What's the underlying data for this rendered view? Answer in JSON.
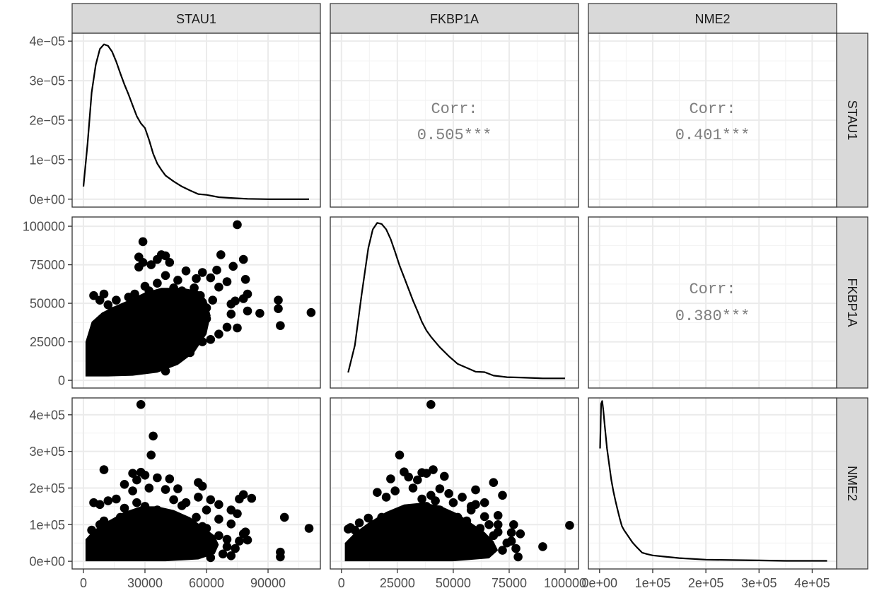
{
  "chart_data": {
    "type": "scatter",
    "title": "",
    "variables": [
      "STAU1",
      "FKBP1A",
      "NME2"
    ],
    "corr_label": "Corr:",
    "correlations": [
      {
        "row": "STAU1",
        "col": "FKBP1A",
        "value": "0.505***"
      },
      {
        "row": "STAU1",
        "col": "NME2",
        "value": "0.401***"
      },
      {
        "row": "FKBP1A",
        "col": "NME2",
        "value": "0.380***"
      }
    ],
    "density_y_axis": {
      "range": [
        -2e-06,
        4.2e-05
      ],
      "ticks": [
        0,
        1e-05,
        2e-05,
        3e-05,
        4e-05
      ],
      "labels": [
        "0e+00",
        "1e−05",
        "2e−05",
        "3e−05",
        "4e−05"
      ]
    },
    "axes": {
      "STAU1": {
        "range": [
          -5500,
          115500
        ],
        "ticks": [
          0,
          30000,
          60000,
          90000
        ],
        "labels": [
          "0",
          "30000",
          "60000",
          "90000"
        ]
      },
      "FKBP1A": {
        "range": [
          -5000,
          106000
        ],
        "ticks": [
          0,
          25000,
          50000,
          75000,
          100000
        ],
        "labels": [
          "0",
          "25000",
          "50000",
          "75000",
          "100000"
        ]
      },
      "NME2": {
        "range": [
          -21000,
          446000
        ],
        "ticks": [
          0,
          100000,
          200000,
          300000,
          400000
        ],
        "labels": [
          "0e+00",
          "1e+05",
          "2e+05",
          "3e+05",
          "4e+05"
        ]
      }
    },
    "densities": {
      "STAU1": [
        [
          0,
          3.2e-06
        ],
        [
          2000,
          1.4e-05
        ],
        [
          4000,
          2.7e-05
        ],
        [
          6000,
          3.4e-05
        ],
        [
          8000,
          3.8e-05
        ],
        [
          10000,
          3.92e-05
        ],
        [
          12000,
          3.88e-05
        ],
        [
          14000,
          3.73e-05
        ],
        [
          16000,
          3.48e-05
        ],
        [
          18000,
          3.18e-05
        ],
        [
          20000,
          2.9e-05
        ],
        [
          22000,
          2.65e-05
        ],
        [
          24000,
          2.37e-05
        ],
        [
          26000,
          2.1e-05
        ],
        [
          28000,
          1.92e-05
        ],
        [
          30000,
          1.8e-05
        ],
        [
          32000,
          1.5e-05
        ],
        [
          34000,
          1.15e-05
        ],
        [
          36000,
          9e-06
        ],
        [
          38000,
          7.4e-06
        ],
        [
          40000,
          6e-06
        ],
        [
          44000,
          4.5e-06
        ],
        [
          48000,
          3.2e-06
        ],
        [
          52000,
          2.2e-06
        ],
        [
          56000,
          1.3e-06
        ],
        [
          60000,
          1.1e-06
        ],
        [
          66000,
          5e-07
        ],
        [
          72000,
          3e-07
        ],
        [
          80000,
          1e-07
        ],
        [
          90000,
          0
        ],
        [
          100000,
          0
        ],
        [
          110000,
          0
        ]
      ],
      "FKBP1A": [
        [
          3000,
          2e-06
        ],
        [
          6000,
          9e-06
        ],
        [
          9000,
          2.2e-05
        ],
        [
          12000,
          3.4e-05
        ],
        [
          14000,
          3.88e-05
        ],
        [
          16000,
          4.05e-05
        ],
        [
          18000,
          4.02e-05
        ],
        [
          20000,
          3.88e-05
        ],
        [
          22000,
          3.63e-05
        ],
        [
          24000,
          3.3e-05
        ],
        [
          26000,
          2.95e-05
        ],
        [
          28000,
          2.65e-05
        ],
        [
          30000,
          2.35e-05
        ],
        [
          32000,
          2.05e-05
        ],
        [
          34000,
          1.78e-05
        ],
        [
          36000,
          1.5e-05
        ],
        [
          38000,
          1.28e-05
        ],
        [
          40000,
          1.12e-05
        ],
        [
          44000,
          8.5e-06
        ],
        [
          48000,
          6.2e-06
        ],
        [
          52000,
          4.2e-06
        ],
        [
          56000,
          3.2e-06
        ],
        [
          60000,
          2.2e-06
        ],
        [
          64000,
          2.1e-06
        ],
        [
          68000,
          1.2e-06
        ],
        [
          74000,
          8e-07
        ],
        [
          80000,
          7e-07
        ],
        [
          90000,
          5e-07
        ],
        [
          100000,
          5e-07
        ]
      ],
      "NME2": [
        [
          1000,
          2.9e-05
        ],
        [
          3000,
          4.05e-05
        ],
        [
          5000,
          4.12e-05
        ],
        [
          7000,
          3.9e-05
        ],
        [
          10000,
          3.45e-05
        ],
        [
          14000,
          2.9e-05
        ],
        [
          18000,
          2.5e-05
        ],
        [
          22000,
          2.1e-05
        ],
        [
          26000,
          1.8e-05
        ],
        [
          30000,
          1.55e-05
        ],
        [
          34000,
          1.32e-05
        ],
        [
          38000,
          1.1e-05
        ],
        [
          42000,
          9e-06
        ],
        [
          46000,
          8e-06
        ],
        [
          50000,
          7.2e-06
        ],
        [
          56000,
          6e-06
        ],
        [
          62000,
          4.8e-06
        ],
        [
          70000,
          3.6e-06
        ],
        [
          80000,
          2.2e-06
        ],
        [
          90000,
          1.8e-06
        ],
        [
          100000,
          1.5e-06
        ],
        [
          120000,
          1.2e-06
        ],
        [
          150000,
          8e-07
        ],
        [
          200000,
          4e-07
        ],
        [
          250000,
          3e-07
        ],
        [
          300000,
          2e-07
        ],
        [
          350000,
          1e-07
        ],
        [
          428000,
          1e-07
        ]
      ]
    },
    "scatter_points": {
      "FKBP1A_vs_STAU1": [
        [
          75000,
          101000
        ],
        [
          29000,
          90000
        ],
        [
          38000,
          81500
        ],
        [
          40000,
          80800
        ],
        [
          27000,
          80000
        ],
        [
          67000,
          81500
        ],
        [
          78000,
          78500
        ],
        [
          29000,
          76500
        ],
        [
          36000,
          78500
        ],
        [
          42000,
          76500
        ],
        [
          33000,
          75000
        ],
        [
          73000,
          74000
        ],
        [
          27000,
          73500
        ],
        [
          65000,
          71500
        ],
        [
          50000,
          71000
        ],
        [
          58000,
          70000
        ],
        [
          62000,
          66500
        ],
        [
          46000,
          65000
        ],
        [
          55000,
          66000
        ],
        [
          79000,
          65500
        ],
        [
          70000,
          64000
        ],
        [
          66000,
          60500
        ],
        [
          40000,
          68000
        ],
        [
          36000,
          63000
        ],
        [
          30000,
          61000
        ],
        [
          48000,
          58000
        ],
        [
          54000,
          60000
        ],
        [
          80000,
          56000
        ],
        [
          78000,
          53000
        ],
        [
          74000,
          51500
        ],
        [
          95000,
          52000
        ],
        [
          95000,
          46500
        ],
        [
          111000,
          44000
        ],
        [
          86000,
          43500
        ],
        [
          80000,
          45000
        ],
        [
          72000,
          49500
        ],
        [
          96000,
          35500
        ],
        [
          72000,
          43000
        ],
        [
          60000,
          40000
        ],
        [
          75000,
          34000
        ],
        [
          70000,
          34500
        ],
        [
          66000,
          30000
        ],
        [
          62000,
          26500
        ],
        [
          58000,
          25000
        ],
        [
          5000,
          55000
        ],
        [
          8000,
          52000
        ],
        [
          12000,
          49000
        ],
        [
          15000,
          45000
        ],
        [
          18000,
          43000
        ],
        [
          21000,
          48000
        ],
        [
          24000,
          46000
        ],
        [
          50000,
          44000
        ],
        [
          47000,
          20000
        ],
        [
          52000,
          18000
        ],
        [
          40000,
          6000
        ],
        [
          30000,
          8000
        ],
        [
          20000,
          6500
        ],
        [
          10000,
          9000
        ],
        [
          5000,
          12000
        ],
        [
          10000,
          56000
        ],
        [
          16000,
          52000
        ],
        [
          22000,
          54000
        ],
        [
          25000,
          56000
        ],
        [
          32000,
          58000
        ],
        [
          44000,
          60000
        ],
        [
          60000,
          47000
        ],
        [
          55000,
          38000
        ],
        [
          45000,
          30000
        ],
        [
          35000,
          15000
        ],
        [
          25000,
          18000
        ],
        [
          18000,
          15000
        ],
        [
          12000,
          20000
        ],
        [
          8000,
          25000
        ],
        [
          6000,
          30000
        ],
        [
          10000,
          35000
        ],
        [
          14000,
          40000
        ],
        [
          52000,
          52000
        ],
        [
          57000,
          55000
        ],
        [
          42000,
          52000
        ],
        [
          63000,
          52000
        ]
      ],
      "NME2_vs_STAU1": [
        [
          28000,
          428000
        ],
        [
          34000,
          342000
        ],
        [
          33000,
          290000
        ],
        [
          10000,
          250000
        ],
        [
          24000,
          240000
        ],
        [
          28000,
          243000
        ],
        [
          30000,
          235000
        ],
        [
          36000,
          228000
        ],
        [
          42000,
          225000
        ],
        [
          26000,
          222000
        ],
        [
          56000,
          215000
        ],
        [
          58000,
          205000
        ],
        [
          20000,
          210000
        ],
        [
          32000,
          200000
        ],
        [
          46000,
          198000
        ],
        [
          40000,
          196000
        ],
        [
          24000,
          192000
        ],
        [
          78000,
          182000
        ],
        [
          76000,
          170000
        ],
        [
          82000,
          172000
        ],
        [
          56000,
          175000
        ],
        [
          62000,
          168000
        ],
        [
          50000,
          160000
        ],
        [
          66000,
          155000
        ],
        [
          5000,
          160000
        ],
        [
          8000,
          155000
        ],
        [
          12000,
          165000
        ],
        [
          16000,
          170000
        ],
        [
          44000,
          168000
        ],
        [
          60000,
          140000
        ],
        [
          72000,
          140000
        ],
        [
          75000,
          130000
        ],
        [
          98000,
          120000
        ],
        [
          66000,
          115000
        ],
        [
          72000,
          102000
        ],
        [
          79000,
          80000
        ],
        [
          110000,
          90000
        ],
        [
          78000,
          75000
        ],
        [
          80000,
          58000
        ],
        [
          76000,
          55000
        ],
        [
          96000,
          25000
        ],
        [
          96000,
          12000
        ],
        [
          4000,
          85000
        ],
        [
          60000,
          90000
        ],
        [
          54000,
          85000
        ],
        [
          66000,
          70000
        ],
        [
          70000,
          60000
        ],
        [
          70000,
          40000
        ],
        [
          74000,
          35000
        ],
        [
          68000,
          20000
        ],
        [
          72000,
          15000
        ],
        [
          62000,
          10000
        ],
        [
          20000,
          145000
        ],
        [
          30000,
          150000
        ],
        [
          36000,
          140000
        ],
        [
          26000,
          160000
        ],
        [
          48000,
          152000
        ],
        [
          40000,
          130000
        ],
        [
          18000,
          120000
        ],
        [
          10000,
          110000
        ],
        [
          8000,
          100000
        ],
        [
          50000,
          110000
        ],
        [
          55000,
          120000
        ],
        [
          58000,
          95000
        ],
        [
          48000,
          80000
        ]
      ],
      "NME2_vs_FKBP1A": [
        [
          40000,
          428000
        ],
        [
          26000,
          290000
        ],
        [
          28000,
          244000
        ],
        [
          36000,
          242000
        ],
        [
          38000,
          240000
        ],
        [
          41000,
          250000
        ],
        [
          46000,
          232000
        ],
        [
          30000,
          230000
        ],
        [
          22000,
          225000
        ],
        [
          34000,
          222000
        ],
        [
          68000,
          215000
        ],
        [
          32000,
          200000
        ],
        [
          44000,
          198000
        ],
        [
          24000,
          192000
        ],
        [
          60000,
          195000
        ],
        [
          16000,
          188000
        ],
        [
          48000,
          185000
        ],
        [
          40000,
          180000
        ],
        [
          72000,
          180000
        ],
        [
          54000,
          175000
        ],
        [
          20000,
          175000
        ],
        [
          60000,
          155000
        ],
        [
          58000,
          150000
        ],
        [
          64000,
          160000
        ],
        [
          58000,
          140000
        ],
        [
          64000,
          122000
        ],
        [
          70000,
          125000
        ],
        [
          66000,
          100000
        ],
        [
          70000,
          100000
        ],
        [
          77000,
          100000
        ],
        [
          70000,
          80000
        ],
        [
          76000,
          78000
        ],
        [
          80000,
          75000
        ],
        [
          76000,
          55000
        ],
        [
          90000,
          40000
        ],
        [
          102000,
          98000
        ],
        [
          78000,
          35000
        ],
        [
          62000,
          35000
        ],
        [
          72000,
          30000
        ],
        [
          66000,
          25000
        ],
        [
          79000,
          12000
        ],
        [
          4000,
          92000
        ],
        [
          3000,
          88000
        ],
        [
          6000,
          85000
        ],
        [
          8000,
          105000
        ],
        [
          12000,
          118000
        ],
        [
          36000,
          170000
        ],
        [
          42000,
          165000
        ],
        [
          50000,
          160000
        ],
        [
          52000,
          120000
        ],
        [
          26000,
          130000
        ],
        [
          30000,
          140000
        ],
        [
          18000,
          120000
        ],
        [
          14000,
          100000
        ],
        [
          56000,
          110000
        ],
        [
          62000,
          90000
        ],
        [
          68000,
          70000
        ],
        [
          60000,
          60000
        ],
        [
          74000,
          50000
        ],
        [
          66000,
          45000
        ],
        [
          50000,
          90000
        ],
        [
          44000,
          140000
        ],
        [
          38000,
          150000
        ],
        [
          46000,
          125000
        ]
      ]
    }
  }
}
